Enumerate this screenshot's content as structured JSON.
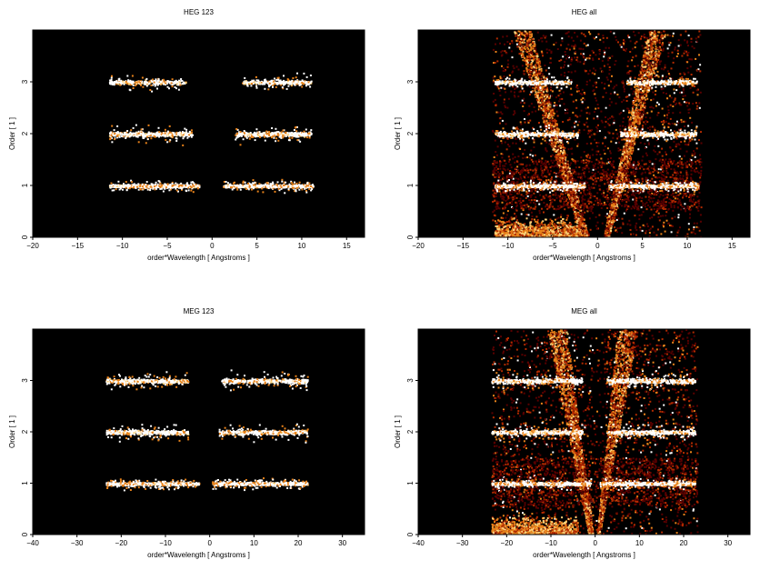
{
  "chart_data": [
    {
      "type": "heatmap",
      "title": "HEG 123",
      "xlabel": "order*Wavelength [ Angstroms ]",
      "ylabel": "Order [ 1 ]",
      "xlim": [
        -20,
        17
      ],
      "ylim": [
        0,
        4
      ],
      "xticks": [
        -20,
        -15,
        -10,
        -5,
        0,
        5,
        10,
        15
      ],
      "yticks": [
        0,
        1,
        2,
        3
      ],
      "background": "#000000",
      "colormap": [
        "#000000",
        "#5a0000",
        "#b22a00",
        "#e8821a",
        "#ffd27a",
        "#ffffff"
      ],
      "bands": [
        {
          "order": 1,
          "segments": [
            [
              -11.5,
              -1.5
            ],
            [
              1.2,
              11.2
            ]
          ],
          "intensity": "high"
        },
        {
          "order": 2,
          "segments": [
            [
              -11.5,
              -2.2
            ],
            [
              2.5,
              11.0
            ]
          ],
          "intensity": "medium"
        },
        {
          "order": 3,
          "segments": [
            [
              -11.5,
              -3.0
            ],
            [
              3.2,
              11.0
            ]
          ],
          "intensity": "low"
        }
      ],
      "wedges": false
    },
    {
      "type": "heatmap",
      "title": "HEG all",
      "xlabel": "order*Wavelength [ Angstroms ]",
      "ylabel": "Order [ 1 ]",
      "xlim": [
        -20,
        17
      ],
      "ylim": [
        0,
        4
      ],
      "xticks": [
        -20,
        -15,
        -10,
        -5,
        0,
        5,
        10,
        15
      ],
      "yticks": [
        0,
        1,
        2,
        3
      ],
      "background": "#000000",
      "colormap": [
        "#000000",
        "#5a0000",
        "#b22a00",
        "#e8821a",
        "#ffd27a",
        "#ffffff"
      ],
      "bands": [
        {
          "order": 1,
          "segments": [
            [
              -11.5,
              -1.5
            ],
            [
              1.2,
              11.2
            ]
          ],
          "intensity": "high"
        },
        {
          "order": 2,
          "segments": [
            [
              -11.5,
              -2.2
            ],
            [
              2.5,
              11.0
            ]
          ],
          "intensity": "medium"
        },
        {
          "order": 3,
          "segments": [
            [
              -11.5,
              -3.0
            ],
            [
              3.2,
              11.0
            ]
          ],
          "intensity": "low"
        }
      ],
      "wedges": true
    },
    {
      "type": "heatmap",
      "title": "MEG 123",
      "xlabel": "order*Wavelength [ Angstroms ]",
      "ylabel": "Order [ 1 ]",
      "xlim": [
        -40,
        35
      ],
      "ylim": [
        0,
        4
      ],
      "xticks": [
        -40,
        -30,
        -20,
        -10,
        0,
        10,
        20,
        30
      ],
      "yticks": [
        0,
        1,
        2,
        3
      ],
      "background": "#000000",
      "colormap": [
        "#000000",
        "#5a0000",
        "#b22a00",
        "#e8821a",
        "#ffd27a",
        "#ffffff"
      ],
      "bands": [
        {
          "order": 1,
          "segments": [
            [
              -23.5,
              -2.5
            ],
            [
              0.5,
              22.0
            ]
          ],
          "intensity": "high"
        },
        {
          "order": 2,
          "segments": [
            [
              -23.5,
              -5.0
            ],
            [
              2.0,
              22.0
            ]
          ],
          "intensity": "medium"
        },
        {
          "order": 3,
          "segments": [
            [
              -23.5,
              -5.0
            ],
            [
              2.5,
              22.0
            ]
          ],
          "intensity": "medium"
        }
      ],
      "wedges": false
    },
    {
      "type": "heatmap",
      "title": "MEG all",
      "xlabel": "order*Wavelength [ Angstroms ]",
      "ylabel": "Order [ 1 ]",
      "xlim": [
        -40,
        35
      ],
      "ylim": [
        0,
        4
      ],
      "xticks": [
        -40,
        -30,
        -20,
        -10,
        0,
        10,
        20,
        30
      ],
      "yticks": [
        0,
        1,
        2,
        3
      ],
      "background": "#000000",
      "colormap": [
        "#000000",
        "#5a0000",
        "#b22a00",
        "#e8821a",
        "#ffd27a",
        "#ffffff"
      ],
      "bands": [
        {
          "order": 1,
          "segments": [
            [
              -23.5,
              -1.0
            ],
            [
              1.0,
              22.5
            ]
          ],
          "intensity": "high"
        },
        {
          "order": 2,
          "segments": [
            [
              -23.5,
              -3.0
            ],
            [
              2.5,
              22.5
            ]
          ],
          "intensity": "medium"
        },
        {
          "order": 3,
          "segments": [
            [
              -23.5,
              -3.0
            ],
            [
              2.5,
              22.5
            ]
          ],
          "intensity": "medium"
        }
      ],
      "wedges": true
    }
  ]
}
